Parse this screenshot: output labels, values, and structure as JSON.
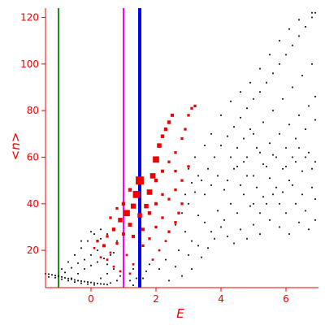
{
  "chart_data": {
    "type": "scatter",
    "xlabel": "E",
    "ylabel": "<n>",
    "xlim": [
      -1.4,
      7.0
    ],
    "ylim": [
      4,
      124
    ],
    "x_ticks": [
      0,
      2,
      4,
      6
    ],
    "x_tick_labels": [
      "0",
      "2",
      "4",
      "6"
    ],
    "y_ticks": [
      20,
      40,
      60,
      80,
      100,
      120
    ],
    "y_tick_labels": [
      "20",
      "40",
      "60",
      "80",
      "100",
      "120"
    ],
    "grid": false,
    "legend": "none",
    "vertical_lines": [
      {
        "x": -1.0,
        "color": "#228822"
      },
      {
        "x": 1.0,
        "color": "#ff00ff"
      },
      {
        "x": 1.5,
        "color": "#0000ff"
      }
    ],
    "series": [
      {
        "color": "#000000",
        "points": [
          [
            -1.4,
            10
          ],
          [
            -1.3,
            9.8
          ],
          [
            -1.2,
            9.5
          ],
          [
            -1.1,
            9.2
          ],
          [
            -1.0,
            8.9
          ],
          [
            -0.9,
            8.6
          ],
          [
            -0.8,
            8.2
          ],
          [
            -0.7,
            7.9
          ],
          [
            -0.6,
            7.6
          ],
          [
            -0.5,
            7.3
          ],
          [
            -0.4,
            7.0
          ],
          [
            -0.3,
            6.8
          ],
          [
            -0.2,
            6.6
          ],
          [
            -0.1,
            6.4
          ],
          [
            0.0,
            6.2
          ],
          [
            0.1,
            6.0
          ],
          [
            0.2,
            5.8
          ],
          [
            0.3,
            5.6
          ],
          [
            0.4,
            5.5
          ],
          [
            0.5,
            5.3
          ],
          [
            -1.3,
            8.6
          ],
          [
            -1.1,
            8.3
          ],
          [
            -0.9,
            7.6
          ],
          [
            -0.7,
            7.0
          ],
          [
            -0.5,
            6.4
          ],
          [
            -0.3,
            5.9
          ],
          [
            -0.1,
            5.5
          ],
          [
            0.1,
            5.2
          ],
          [
            -0.9,
            12
          ],
          [
            -0.7,
            15
          ],
          [
            -0.5,
            18
          ],
          [
            -0.3,
            21
          ],
          [
            -0.1,
            24
          ],
          [
            0.1,
            27
          ],
          [
            0.3,
            29
          ],
          [
            -0.8,
            10.5
          ],
          [
            -0.6,
            12.5
          ],
          [
            -0.4,
            14.5
          ],
          [
            -0.2,
            16
          ],
          [
            0.0,
            18
          ],
          [
            0.2,
            20
          ],
          [
            0.4,
            22
          ],
          [
            -0.6,
            8
          ],
          [
            -0.4,
            10
          ],
          [
            -0.2,
            12
          ],
          [
            0.0,
            13.5
          ],
          [
            0.2,
            15
          ],
          [
            0.4,
            16.5
          ],
          [
            0.6,
            18
          ],
          [
            -0.3,
            24
          ],
          [
            0.0,
            28
          ],
          [
            0.3,
            25
          ],
          [
            0.5,
            27
          ],
          [
            0.3,
            8
          ],
          [
            0.5,
            10
          ],
          [
            0.7,
            12
          ],
          [
            0.6,
            6
          ],
          [
            0.8,
            7
          ],
          [
            0.9,
            9
          ],
          [
            0.5,
            14
          ],
          [
            0.7,
            19
          ],
          [
            0.8,
            24
          ],
          [
            1.2,
            7
          ],
          [
            1.4,
            8
          ],
          [
            1.3,
            12
          ],
          [
            1.3,
            5
          ],
          [
            1.6,
            8
          ],
          [
            1.7,
            11
          ],
          [
            1.8,
            14
          ],
          [
            2.1,
            12
          ],
          [
            2.3,
            16
          ],
          [
            2.4,
            7
          ],
          [
            2.6,
            13
          ],
          [
            2.7,
            20
          ],
          [
            2.8,
            9
          ],
          [
            3.0,
            18
          ],
          [
            3.1,
            12
          ],
          [
            3.3,
            22
          ],
          [
            3.4,
            17
          ],
          [
            3.6,
            21
          ],
          [
            3.8,
            25
          ],
          [
            2.6,
            31
          ],
          [
            2.9,
            28
          ],
          [
            3.1,
            24
          ],
          [
            3.3,
            35
          ],
          [
            3.5,
            32
          ],
          [
            3.7,
            28
          ],
          [
            3.9,
            37
          ],
          [
            4.1,
            33
          ],
          [
            4.3,
            40
          ],
          [
            4.5,
            36
          ],
          [
            4.7,
            44
          ],
          [
            4.9,
            39
          ],
          [
            5.1,
            47
          ],
          [
            5.3,
            43
          ],
          [
            5.5,
            51
          ],
          [
            5.7,
            47
          ],
          [
            5.9,
            55
          ],
          [
            6.1,
            50
          ],
          [
            6.3,
            58
          ],
          [
            6.5,
            54
          ],
          [
            6.7,
            62
          ],
          [
            6.9,
            58
          ],
          [
            3.2,
            45
          ],
          [
            3.4,
            50
          ],
          [
            3.6,
            55
          ],
          [
            3.8,
            60
          ],
          [
            4.0,
            65
          ],
          [
            4.2,
            69
          ],
          [
            4.4,
            73
          ],
          [
            4.6,
            77
          ],
          [
            4.8,
            81
          ],
          [
            5.0,
            85
          ],
          [
            5.2,
            88
          ],
          [
            5.4,
            92
          ],
          [
            5.6,
            96
          ],
          [
            5.8,
            100
          ],
          [
            6.0,
            104
          ],
          [
            6.2,
            108
          ],
          [
            6.4,
            112
          ],
          [
            6.6,
            116
          ],
          [
            6.8,
            120
          ],
          [
            6.9,
            122
          ],
          [
            4.0,
            78
          ],
          [
            4.3,
            84
          ],
          [
            4.6,
            88
          ],
          [
            4.9,
            92
          ],
          [
            5.2,
            98
          ],
          [
            5.5,
            104
          ],
          [
            5.8,
            110
          ],
          [
            6.1,
            115
          ],
          [
            6.4,
            119
          ],
          [
            6.8,
            122
          ],
          [
            3.0,
            55
          ],
          [
            3.2,
            60
          ],
          [
            3.5,
            65
          ],
          [
            3.7,
            70
          ],
          [
            5.2,
            62
          ],
          [
            5.5,
            66
          ],
          [
            5.8,
            70
          ],
          [
            6.1,
            74
          ],
          [
            6.4,
            78
          ],
          [
            6.7,
            82
          ],
          [
            6.9,
            86
          ],
          [
            5.0,
            70
          ],
          [
            5.3,
            75
          ],
          [
            5.6,
            80
          ],
          [
            5.9,
            85
          ],
          [
            6.2,
            90
          ],
          [
            6.5,
            95
          ],
          [
            6.8,
            100
          ],
          [
            4.5,
            56
          ],
          [
            4.8,
            60
          ],
          [
            5.1,
            64
          ],
          [
            5.4,
            56
          ],
          [
            5.7,
            60
          ],
          [
            6.0,
            64
          ],
          [
            6.3,
            68
          ],
          [
            6.6,
            72
          ],
          [
            6.9,
            76
          ],
          [
            4.2,
            50
          ],
          [
            4.4,
            55
          ],
          [
            4.7,
            58
          ],
          [
            5.0,
            52
          ],
          [
            5.3,
            57
          ],
          [
            5.6,
            61
          ],
          [
            5.9,
            45
          ],
          [
            6.2,
            48
          ],
          [
            6.5,
            44
          ],
          [
            6.8,
            47
          ],
          [
            6.0,
            36
          ],
          [
            6.3,
            40
          ],
          [
            6.6,
            37
          ],
          [
            6.9,
            42
          ],
          [
            5.5,
            33
          ],
          [
            5.8,
            30
          ],
          [
            6.1,
            27
          ],
          [
            6.4,
            32
          ],
          [
            6.7,
            29
          ],
          [
            6.9,
            33
          ],
          [
            4.0,
            30
          ],
          [
            4.2,
            26
          ],
          [
            4.4,
            23
          ],
          [
            4.6,
            29
          ],
          [
            4.8,
            25
          ],
          [
            5.0,
            31
          ],
          [
            5.2,
            27
          ],
          [
            3.0,
            40
          ],
          [
            2.8,
            36
          ],
          [
            2.9,
            44
          ],
          [
            3.1,
            49
          ],
          [
            3.3,
            52
          ],
          [
            3.5,
            44
          ],
          [
            3.7,
            48
          ],
          [
            3.9,
            52
          ],
          [
            4.1,
            46
          ],
          [
            4.3,
            60
          ],
          [
            4.5,
            64
          ],
          [
            4.7,
            68
          ],
          [
            4.9,
            72
          ],
          [
            4.6,
            48
          ],
          [
            4.8,
            52
          ],
          [
            5.0,
            40
          ],
          [
            5.2,
            36
          ],
          [
            5.4,
            40
          ],
          [
            5.6,
            44
          ],
          [
            5.8,
            40
          ],
          [
            6.0,
            56
          ],
          [
            6.2,
            60
          ],
          [
            6.4,
            64
          ],
          [
            6.6,
            60
          ],
          [
            6.8,
            55
          ]
        ]
      },
      {
        "color": "#ee0000",
        "points": [
          [
            0.1,
            21,
            1.2
          ],
          [
            0.2,
            24,
            1.5
          ],
          [
            0.3,
            17,
            1.2
          ],
          [
            0.4,
            22,
            1.8
          ],
          [
            0.5,
            26,
            1.5
          ],
          [
            0.6,
            19,
            1.2
          ],
          [
            0.7,
            29,
            2.0
          ],
          [
            0.8,
            23,
            1.5
          ],
          [
            0.9,
            33,
            2.5
          ],
          [
            1.0,
            27,
            1.8
          ],
          [
            1.1,
            36,
            3.5
          ],
          [
            1.2,
            31,
            2.2
          ],
          [
            1.3,
            39,
            2.8
          ],
          [
            1.4,
            44,
            4.0
          ],
          [
            1.5,
            50,
            4.5
          ],
          [
            1.3,
            26,
            1.8
          ],
          [
            1.5,
            35,
            2.5
          ],
          [
            1.6,
            29,
            1.8
          ],
          [
            1.7,
            39,
            2.5
          ],
          [
            1.8,
            45,
            3.0
          ],
          [
            1.9,
            52,
            3.0
          ],
          [
            2.0,
            59,
            3.5
          ],
          [
            2.1,
            65,
            2.5
          ],
          [
            2.2,
            69,
            2.0
          ],
          [
            2.3,
            72,
            2.0
          ],
          [
            2.4,
            75,
            2.0
          ],
          [
            2.5,
            78,
            1.8
          ],
          [
            2.6,
            62,
            1.5
          ],
          [
            2.8,
            68,
            1.5
          ],
          [
            2.9,
            72,
            1.5
          ],
          [
            3.0,
            78,
            1.5
          ],
          [
            3.1,
            81,
            1.5
          ],
          [
            3.2,
            82,
            1.5
          ],
          [
            2.0,
            50,
            2.0
          ],
          [
            2.2,
            54,
            1.8
          ],
          [
            2.4,
            58,
            1.5
          ],
          [
            2.6,
            54,
            1.5
          ],
          [
            2.8,
            50,
            1.5
          ],
          [
            3.0,
            56,
            1.5
          ],
          [
            1.8,
            36,
            2.0
          ],
          [
            2.0,
            40,
            1.8
          ],
          [
            2.2,
            44,
            1.5
          ],
          [
            2.4,
            42,
            1.5
          ],
          [
            2.6,
            46,
            1.5
          ],
          [
            2.8,
            40,
            1.5
          ],
          [
            1.0,
            40,
            2.0
          ],
          [
            1.2,
            46,
            2.0
          ],
          [
            1.1,
            18,
            1.2
          ],
          [
            1.3,
            14,
            1.2
          ],
          [
            1.6,
            22,
            1.5
          ],
          [
            1.8,
            25,
            1.5
          ],
          [
            2.0,
            30,
            1.5
          ],
          [
            2.2,
            34,
            1.5
          ],
          [
            2.4,
            28,
            1.5
          ],
          [
            2.6,
            32,
            1.5
          ],
          [
            2.7,
            36,
            1.5
          ],
          [
            0.6,
            34,
            1.5
          ],
          [
            0.8,
            38,
            1.5
          ],
          [
            0.5,
            16,
            1.2
          ],
          [
            0.7,
            13,
            1.2
          ],
          [
            0.9,
            11,
            1.2
          ],
          [
            1.2,
            10,
            1.2
          ],
          [
            2.1,
            20,
            1.2
          ],
          [
            2.3,
            24,
            1.2
          ],
          [
            1.9,
            16,
            1.2
          ]
        ]
      }
    ]
  }
}
